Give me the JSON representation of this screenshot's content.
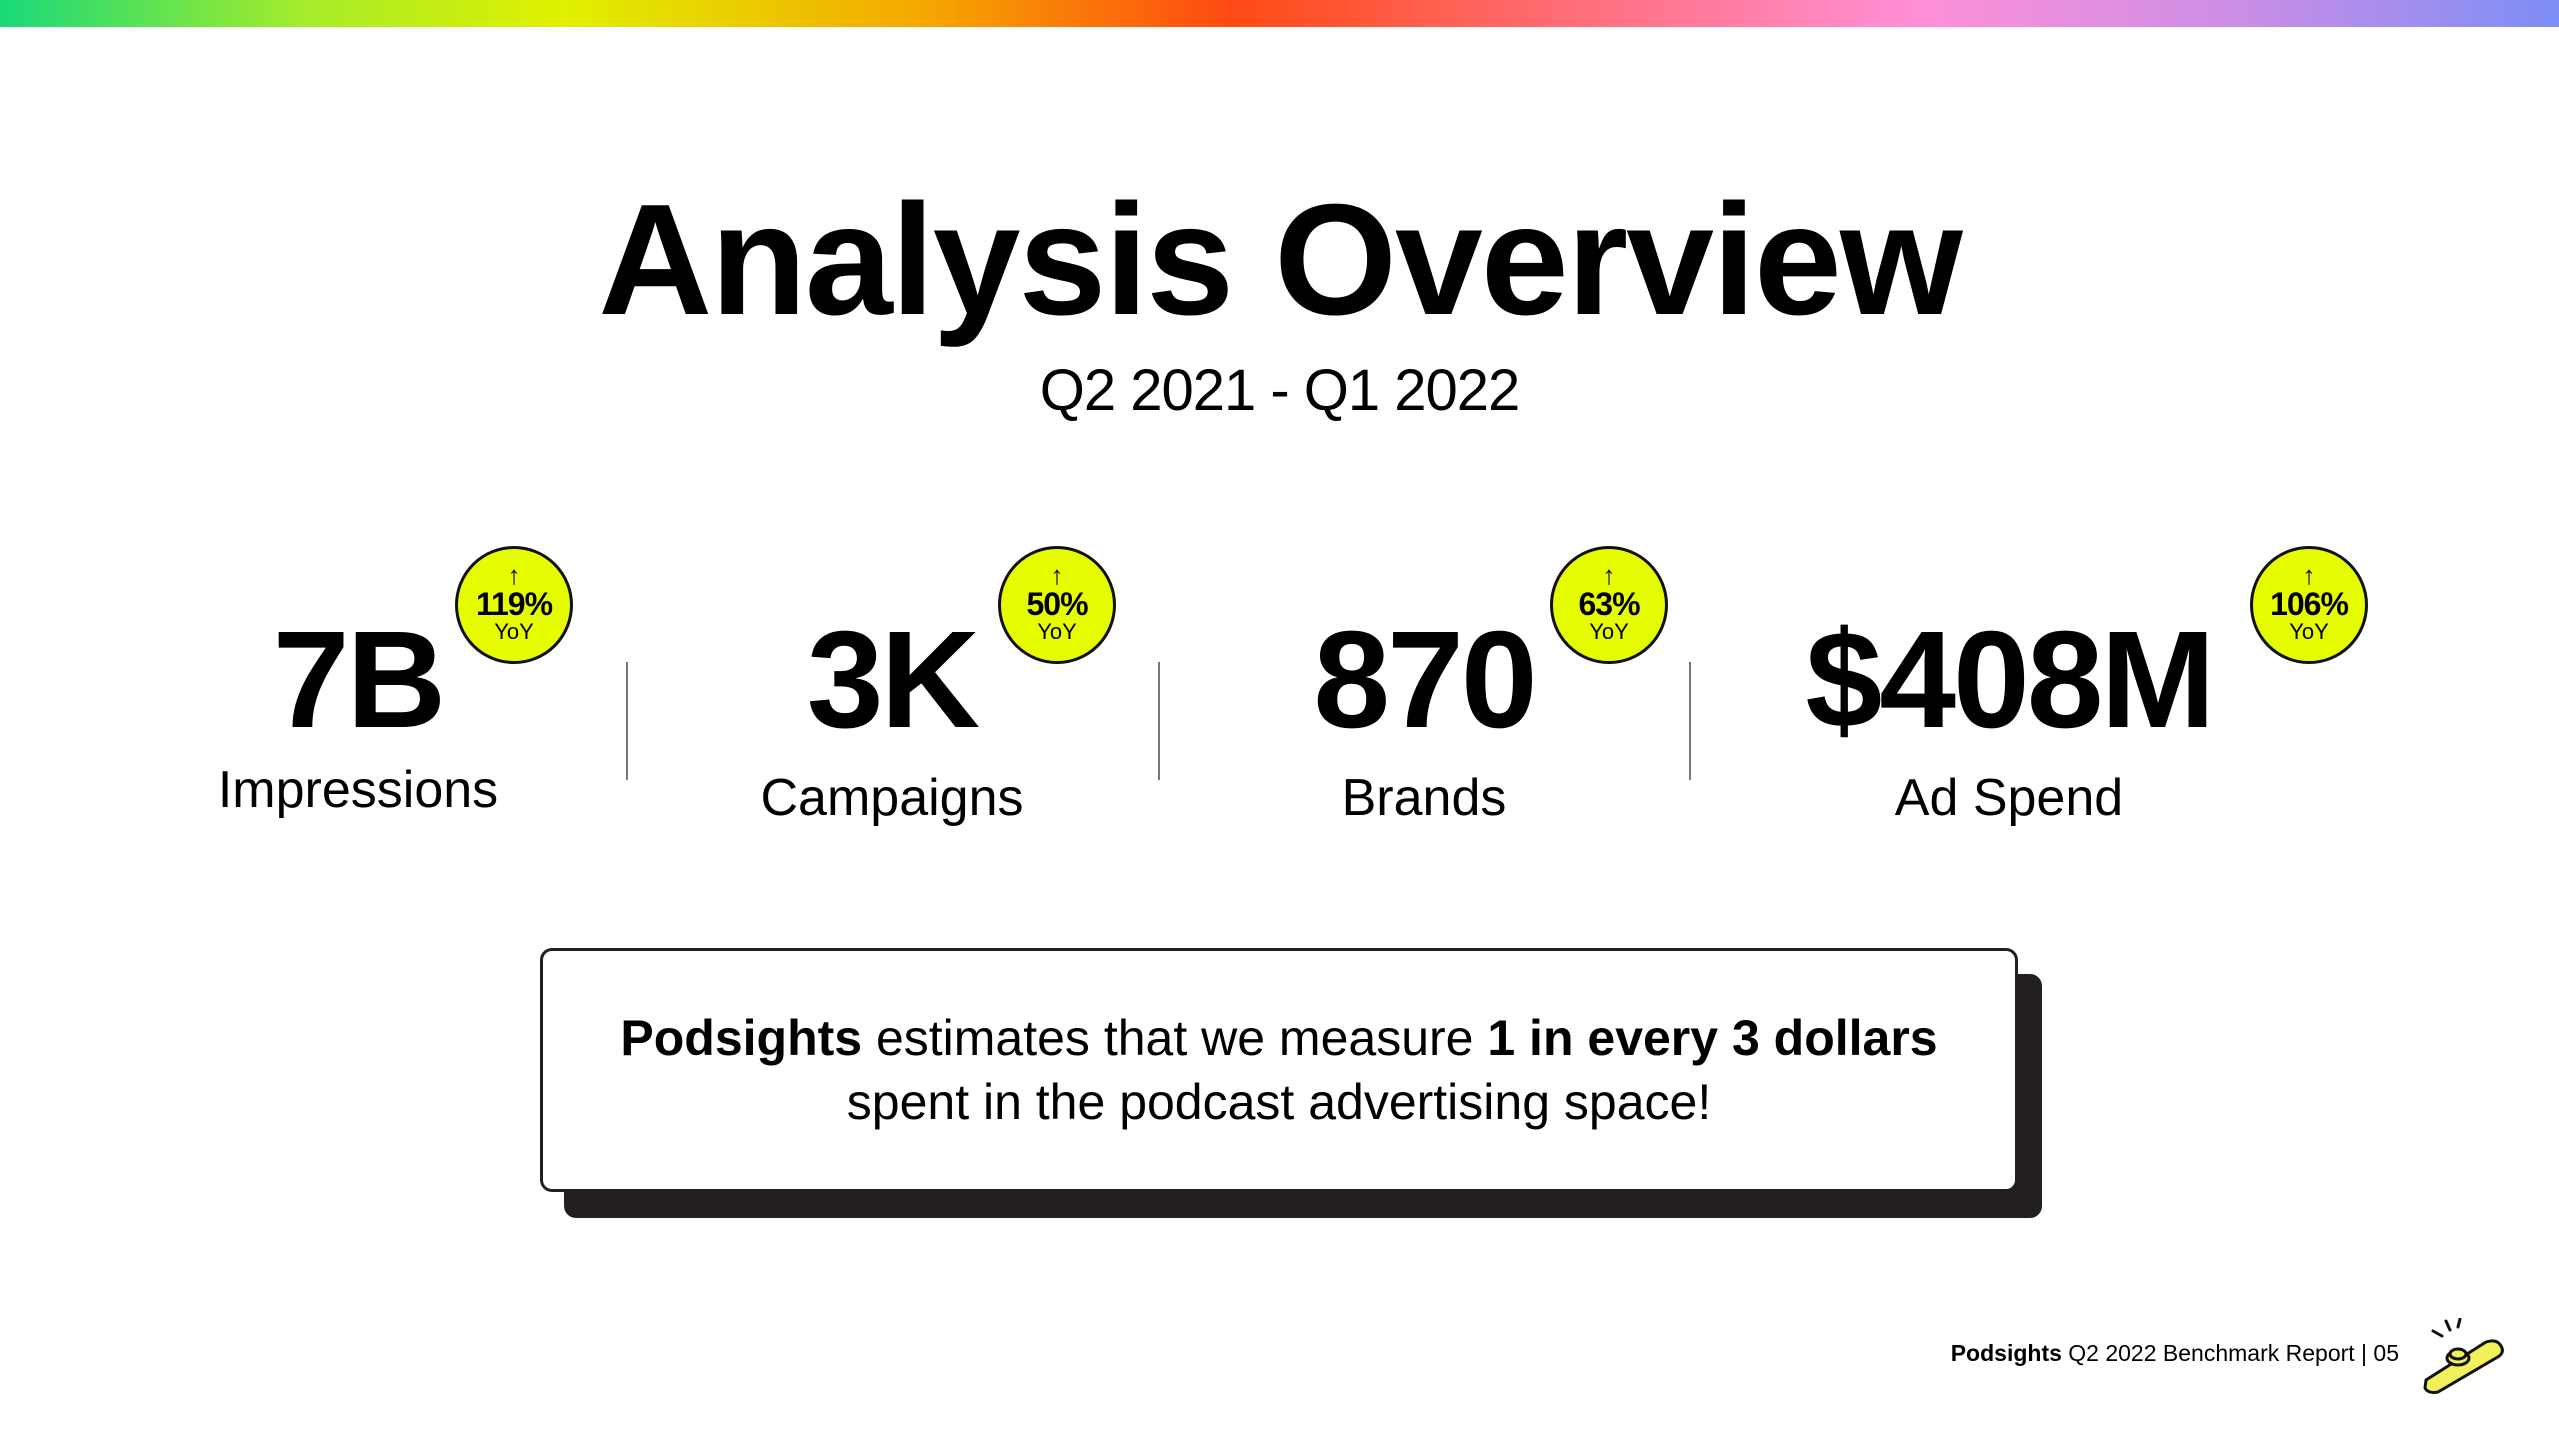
{
  "title": "Analysis Overview",
  "subtitle": "Q2 2021 - Q1 2022",
  "stats": [
    {
      "value": "7B",
      "label": "Impressions",
      "yoy_pct": "119%",
      "yoy_label": "YoY",
      "arrow": "↑"
    },
    {
      "value": "3K",
      "label": "Campaigns",
      "yoy_pct": "50%",
      "yoy_label": "YoY",
      "arrow": "↑"
    },
    {
      "value": "870",
      "label": "Brands",
      "yoy_pct": "63%",
      "yoy_label": "YoY",
      "arrow": "↑"
    },
    {
      "value": "$408M",
      "label": "Ad Spend",
      "yoy_pct": "106%",
      "yoy_label": "YoY",
      "arrow": "↑"
    }
  ],
  "callout": {
    "brand": "Podsights",
    "text_a": " estimates that we measure ",
    "highlight": "1 in every 3 dollars",
    "line2": "spent in the podcast advertising space!"
  },
  "footer": {
    "brand": "Podsights",
    "report": " Q2 2022 Benchmark Report | 05"
  },
  "colors": {
    "badge": "#e6fc00",
    "text": "#000000",
    "shadow": "#231f20"
  },
  "icons": {
    "logo": "kazoo-logo-icon",
    "arrow": "arrow-up-icon"
  }
}
